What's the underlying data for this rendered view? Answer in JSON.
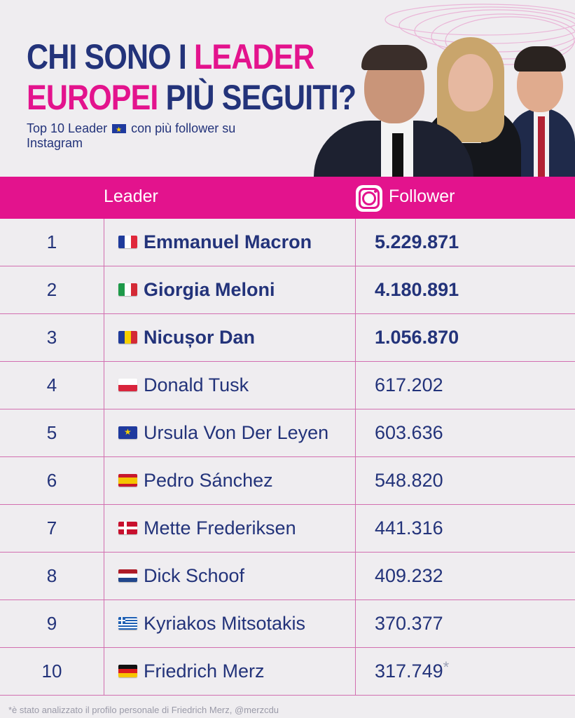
{
  "header": {
    "title_line1_a": "CHI SONO I ",
    "title_line1_b": "LEADER",
    "title_line2_a": "EUROPEI",
    "title_line2_b": " PIÙ SEGUITI?",
    "subtitle_a": "Top 10 Leader",
    "subtitle_b": "con più follower su Instagram",
    "subtitle_flag": "eu-flag-icon"
  },
  "colors": {
    "pink": "#e3138d",
    "navy": "#23337a",
    "background": "#efedf0"
  },
  "table": {
    "col_leader": "Leader",
    "col_follower": "Follower",
    "follower_icon": "instagram-icon",
    "rows": [
      {
        "rank": "1",
        "flag": "france",
        "name": "Emmanuel Macron",
        "followers": "5.229.871",
        "bold": true,
        "note": ""
      },
      {
        "rank": "2",
        "flag": "italy",
        "name": "Giorgia Meloni",
        "followers": "4.180.891",
        "bold": true,
        "note": ""
      },
      {
        "rank": "3",
        "flag": "romania",
        "name": "Nicușor Dan",
        "followers": "1.056.870",
        "bold": true,
        "note": ""
      },
      {
        "rank": "4",
        "flag": "poland",
        "name": "Donald Tusk",
        "followers": "617.202",
        "bold": false,
        "note": ""
      },
      {
        "rank": "5",
        "flag": "eu",
        "name": "Ursula Von Der Leyen",
        "followers": "603.636",
        "bold": false,
        "note": ""
      },
      {
        "rank": "6",
        "flag": "spain",
        "name": "Pedro Sánchez",
        "followers": "548.820",
        "bold": false,
        "note": ""
      },
      {
        "rank": "7",
        "flag": "denmark",
        "name": "Mette Frederiksen",
        "followers": "441.316",
        "bold": false,
        "note": ""
      },
      {
        "rank": "8",
        "flag": "netherlands",
        "name": "Dick Schoof",
        "followers": "409.232",
        "bold": false,
        "note": ""
      },
      {
        "rank": "9",
        "flag": "greece",
        "name": "Kyriakos Mitsotakis",
        "followers": "370.377",
        "bold": false,
        "note": ""
      },
      {
        "rank": "10",
        "flag": "germany",
        "name": "Friedrich Merz",
        "followers": "317.749",
        "bold": false,
        "note": "*"
      }
    ]
  },
  "footnote": "*è stato analizzato il profilo personale di Friedrich Merz, @merzcdu"
}
